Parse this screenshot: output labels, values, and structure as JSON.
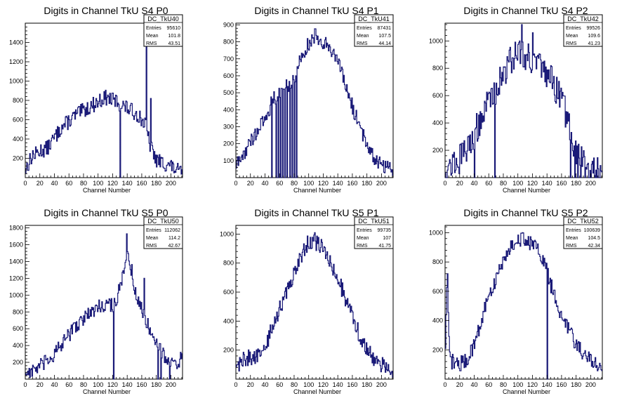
{
  "chart_data": [
    {
      "type": "histogram",
      "title": "Digits in Channel TkU S4 P0",
      "xlabel": "Channel Number",
      "xlim": [
        0,
        216
      ],
      "ylim": [
        0,
        1600
      ],
      "xticks": [
        0,
        20,
        40,
        60,
        80,
        100,
        120,
        140,
        160,
        180,
        200
      ],
      "yticks": [
        200,
        400,
        600,
        800,
        1000,
        1200,
        1400
      ],
      "stats": {
        "name": "DC_TkU40",
        "rows": [
          [
            "Entries",
            "95610"
          ],
          [
            "Mean",
            "101.8"
          ],
          [
            "RMS",
            "43.51"
          ]
        ]
      },
      "profile": {
        "knots": [
          [
            0,
            80
          ],
          [
            8,
            200
          ],
          [
            20,
            280
          ],
          [
            30,
            300
          ],
          [
            50,
            520
          ],
          [
            70,
            650
          ],
          [
            90,
            740
          ],
          [
            110,
            830
          ],
          [
            125,
            790
          ],
          [
            140,
            720
          ],
          [
            155,
            650
          ],
          [
            165,
            550
          ],
          [
            172,
            320
          ],
          [
            180,
            180
          ],
          [
            200,
            120
          ],
          [
            215,
            40
          ]
        ],
        "noise": 80,
        "spikes": [
          [
            10,
            280
          ],
          [
            20,
            250
          ],
          [
            46,
            520
          ],
          [
            130,
            0
          ],
          [
            158,
            620
          ],
          [
            166,
            1510
          ],
          [
            172,
            820
          ]
        ]
      }
    },
    {
      "type": "histogram",
      "title": "Digits in Channel TkU S4 P1",
      "xlabel": "Channel Number",
      "xlim": [
        0,
        216
      ],
      "ylim": [
        0,
        910
      ],
      "xticks": [
        0,
        20,
        40,
        60,
        80,
        100,
        120,
        140,
        160,
        180,
        200
      ],
      "yticks": [
        100,
        200,
        300,
        400,
        500,
        600,
        700,
        800,
        900
      ],
      "stats": {
        "name": "DC_TkU41",
        "rows": [
          [
            "Entries",
            "87431"
          ],
          [
            "Mean",
            "107.5"
          ],
          [
            "RMS",
            "44.14"
          ]
        ]
      },
      "profile": {
        "knots": [
          [
            0,
            70
          ],
          [
            10,
            130
          ],
          [
            20,
            210
          ],
          [
            30,
            280
          ],
          [
            40,
            340
          ],
          [
            50,
            450
          ],
          [
            60,
            500
          ],
          [
            70,
            540
          ],
          [
            80,
            580
          ],
          [
            90,
            720
          ],
          [
            100,
            790
          ],
          [
            110,
            840
          ],
          [
            120,
            800
          ],
          [
            130,
            770
          ],
          [
            140,
            680
          ],
          [
            150,
            550
          ],
          [
            160,
            420
          ],
          [
            170,
            300
          ],
          [
            180,
            200
          ],
          [
            190,
            120
          ],
          [
            200,
            80
          ],
          [
            215,
            50
          ]
        ],
        "noise": 45,
        "spikes": [
          [
            49,
            0
          ],
          [
            55,
            0
          ],
          [
            58,
            0
          ],
          [
            61,
            0
          ],
          [
            64,
            0
          ],
          [
            67,
            0
          ],
          [
            70,
            0
          ],
          [
            74,
            0
          ],
          [
            77,
            0
          ],
          [
            80,
            0
          ],
          [
            83,
            0
          ]
        ]
      }
    },
    {
      "type": "histogram",
      "title": "Digits in Channel TkU S4 P2",
      "xlabel": "Channel Number",
      "xlim": [
        0,
        216
      ],
      "ylim": [
        0,
        1130
      ],
      "xticks": [
        0,
        20,
        40,
        60,
        80,
        100,
        120,
        140,
        160,
        180,
        200
      ],
      "yticks": [
        200,
        400,
        600,
        800,
        1000
      ],
      "stats": {
        "name": "DC_TkU42",
        "rows": [
          [
            "Entries",
            "99526"
          ],
          [
            "Mean",
            "109.6"
          ],
          [
            "RMS",
            "41.23"
          ]
        ]
      },
      "profile": {
        "knots": [
          [
            0,
            60
          ],
          [
            10,
            100
          ],
          [
            20,
            140
          ],
          [
            30,
            200
          ],
          [
            40,
            320
          ],
          [
            50,
            440
          ],
          [
            60,
            560
          ],
          [
            70,
            650
          ],
          [
            80,
            760
          ],
          [
            90,
            860
          ],
          [
            100,
            930
          ],
          [
            110,
            900
          ],
          [
            120,
            870
          ],
          [
            130,
            800
          ],
          [
            140,
            750
          ],
          [
            150,
            680
          ],
          [
            160,
            560
          ],
          [
            170,
            400
          ],
          [
            180,
            180
          ],
          [
            195,
            80
          ],
          [
            215,
            60
          ]
        ],
        "noise": 110,
        "spikes": [
          [
            40,
            0
          ],
          [
            68,
            0
          ],
          [
            105,
            1120
          ],
          [
            120,
            1060
          ],
          [
            172,
            0
          ],
          [
            178,
            0
          ],
          [
            182,
            0
          ],
          [
            186,
            0
          ],
          [
            192,
            0
          ],
          [
            198,
            0
          ],
          [
            206,
            0
          ]
        ]
      }
    },
    {
      "type": "histogram",
      "title": "Digits in Channel TkU S5 P0",
      "xlabel": "Channel Number",
      "xlim": [
        0,
        216
      ],
      "ylim": [
        0,
        1830
      ],
      "xticks": [
        0,
        20,
        40,
        60,
        80,
        100,
        120,
        140,
        160,
        180,
        200
      ],
      "yticks": [
        200,
        400,
        600,
        800,
        1000,
        1200,
        1400,
        1600,
        1800
      ],
      "stats": {
        "name": "DC_TkU50",
        "rows": [
          [
            "Entries",
            "112062"
          ],
          [
            "Mean",
            "114.2"
          ],
          [
            "RMS",
            "42.67"
          ]
        ]
      },
      "profile": {
        "knots": [
          [
            0,
            80
          ],
          [
            10,
            100
          ],
          [
            20,
            150
          ],
          [
            30,
            210
          ],
          [
            40,
            300
          ],
          [
            50,
            400
          ],
          [
            60,
            530
          ],
          [
            70,
            640
          ],
          [
            80,
            720
          ],
          [
            90,
            790
          ],
          [
            100,
            860
          ],
          [
            110,
            900
          ],
          [
            120,
            880
          ],
          [
            125,
            950
          ],
          [
            130,
            1080
          ],
          [
            135,
            1250
          ],
          [
            140,
            1450
          ],
          [
            145,
            1350
          ],
          [
            150,
            1100
          ],
          [
            155,
            900
          ],
          [
            160,
            850
          ],
          [
            170,
            620
          ],
          [
            180,
            450
          ],
          [
            190,
            300
          ],
          [
            200,
            200
          ],
          [
            210,
            180
          ],
          [
            215,
            260
          ]
        ],
        "noise": 90,
        "spikes": [
          [
            121,
            0
          ],
          [
            139,
            1730
          ],
          [
            163,
            1200
          ],
          [
            182,
            0
          ],
          [
            186,
            0
          ],
          [
            198,
            0
          ]
        ]
      }
    },
    {
      "type": "histogram",
      "title": "Digits in Channel TkU S5 P1",
      "xlabel": "Channel Number",
      "xlim": [
        0,
        216
      ],
      "ylim": [
        0,
        1060
      ],
      "xticks": [
        0,
        20,
        40,
        60,
        80,
        100,
        120,
        140,
        160,
        180,
        200
      ],
      "yticks": [
        200,
        400,
        600,
        800,
        1000
      ],
      "stats": {
        "name": "DC_TkU51",
        "rows": [
          [
            "Entries",
            "99735"
          ],
          [
            "Mean",
            "107"
          ],
          [
            "RMS",
            "41.75"
          ]
        ]
      },
      "profile": {
        "knots": [
          [
            0,
            80
          ],
          [
            10,
            140
          ],
          [
            20,
            150
          ],
          [
            30,
            160
          ],
          [
            40,
            200
          ],
          [
            50,
            360
          ],
          [
            60,
            480
          ],
          [
            70,
            600
          ],
          [
            80,
            730
          ],
          [
            90,
            850
          ],
          [
            100,
            950
          ],
          [
            110,
            940
          ],
          [
            120,
            900
          ],
          [
            130,
            800
          ],
          [
            140,
            700
          ],
          [
            150,
            560
          ],
          [
            160,
            440
          ],
          [
            170,
            300
          ],
          [
            180,
            200
          ],
          [
            190,
            140
          ],
          [
            200,
            100
          ],
          [
            215,
            60
          ]
        ],
        "noise": 55,
        "spikes": [
          [
            108,
            1010
          ]
        ]
      }
    },
    {
      "type": "histogram",
      "title": "Digits in Channel TkU S5 P2",
      "xlabel": "Channel Number",
      "xlim": [
        0,
        216
      ],
      "ylim": [
        0,
        1050
      ],
      "xticks": [
        0,
        20,
        40,
        60,
        80,
        100,
        120,
        140,
        160,
        180,
        200
      ],
      "yticks": [
        200,
        400,
        600,
        800,
        1000
      ],
      "stats": {
        "name": "DC_TkU52",
        "rows": [
          [
            "Entries",
            "100639"
          ],
          [
            "Mean",
            "104.5"
          ],
          [
            "RMS",
            "42.34"
          ]
        ]
      },
      "profile": {
        "knots": [
          [
            0,
            100
          ],
          [
            3,
            700
          ],
          [
            6,
            150
          ],
          [
            10,
            120
          ],
          [
            20,
            100
          ],
          [
            30,
            130
          ],
          [
            40,
            240
          ],
          [
            50,
            400
          ],
          [
            60,
            560
          ],
          [
            70,
            680
          ],
          [
            80,
            820
          ],
          [
            90,
            900
          ],
          [
            100,
            960
          ],
          [
            110,
            950
          ],
          [
            120,
            920
          ],
          [
            130,
            860
          ],
          [
            140,
            740
          ],
          [
            150,
            560
          ],
          [
            160,
            440
          ],
          [
            170,
            340
          ],
          [
            180,
            240
          ],
          [
            190,
            180
          ],
          [
            200,
            130
          ],
          [
            215,
            70
          ]
        ],
        "noise": 55,
        "spikes": [
          [
            3,
            720
          ],
          [
            140,
            0
          ]
        ]
      }
    }
  ]
}
